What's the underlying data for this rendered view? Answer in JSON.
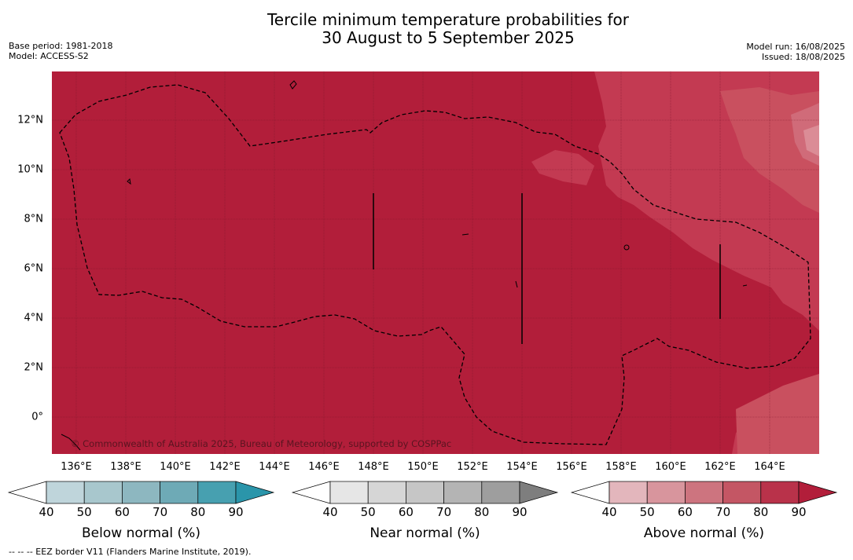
{
  "title_line1": "Tercile minimum temperature probabilities for",
  "title_line2": "30 August to 5 September 2025",
  "base_period": "Base period: 1981-2018",
  "model": "Model: ACCESS-S2",
  "model_run": "Model run: 16/08/2025",
  "issued": "Issued: 18/08/2025",
  "copyright": "© Commonwealth of Australia 2025, Bureau of Meteorology, supported by COSPPac",
  "footer": "--  --  -- EEZ border V11 (Flanders Marine Institute, 2019).",
  "map": {
    "lon_labels": [
      "136°E",
      "138°E",
      "140°E",
      "142°E",
      "144°E",
      "146°E",
      "148°E",
      "150°E",
      "152°E",
      "154°E",
      "156°E",
      "158°E",
      "160°E",
      "162°E",
      "164°E"
    ],
    "lat_labels": [
      "12°N",
      "10°N",
      "8°N",
      "6°N",
      "4°N",
      "2°N",
      "0°"
    ],
    "base_color": "#b21e3a"
  },
  "colorbars": [
    {
      "title": "Below normal (%)",
      "ticks": [
        "40",
        "50",
        "60",
        "70",
        "80",
        "90"
      ],
      "colors": [
        "#ffffff",
        "#bfd5db",
        "#a8c7cd",
        "#8db7c0",
        "#6eaab6",
        "#47a0b0",
        "#2a95aa"
      ]
    },
    {
      "title": "Near normal (%)",
      "ticks": [
        "40",
        "50",
        "60",
        "70",
        "80",
        "90"
      ],
      "colors": [
        "#ffffff",
        "#e6e6e6",
        "#d6d6d6",
        "#c6c6c6",
        "#b4b4b4",
        "#9e9e9e",
        "#7e7e7e"
      ]
    },
    {
      "title": "Above normal (%)",
      "ticks": [
        "40",
        "50",
        "60",
        "70",
        "80",
        "90"
      ],
      "colors": [
        "#ffffff",
        "#e3b6bc",
        "#d8959d",
        "#cd747f",
        "#c45664",
        "#b9324a",
        "#b21e3a"
      ]
    }
  ]
}
